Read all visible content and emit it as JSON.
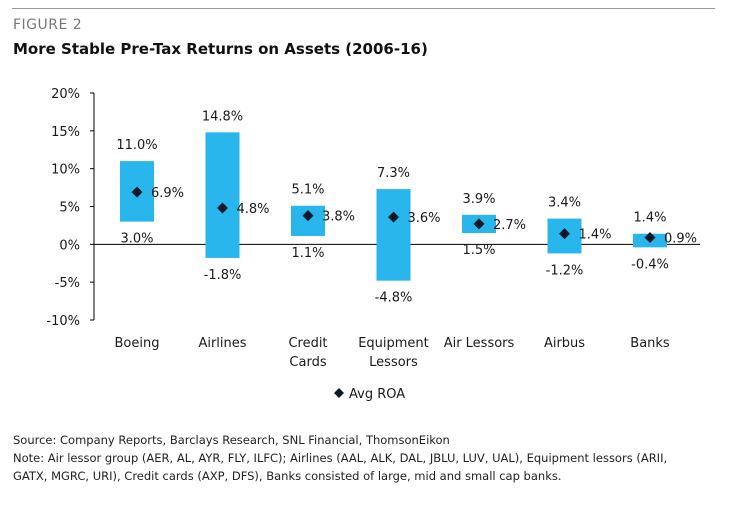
{
  "figure_label": "FIGURE 2",
  "title": "More Stable Pre-Tax Returns on Assets (2006-16)",
  "chart_data": {
    "type": "floating-bar-with-markers",
    "categories": [
      "Boeing",
      "Airlines",
      "Credit Cards",
      "Equipment Lessors",
      "Air Lessors",
      "Airbus",
      "Banks"
    ],
    "category_labels": [
      [
        "Boeing"
      ],
      [
        "Airlines"
      ],
      [
        "Credit",
        "Cards"
      ],
      [
        "Equipment",
        "Lessors"
      ],
      [
        "Air Lessors"
      ],
      [
        "Airbus"
      ],
      [
        "Banks"
      ]
    ],
    "high": [
      11.0,
      14.8,
      5.1,
      7.3,
      3.9,
      3.4,
      1.4
    ],
    "low": [
      3.0,
      -1.8,
      1.1,
      -4.8,
      1.5,
      -1.2,
      -0.4
    ],
    "avg": [
      6.9,
      4.8,
      3.8,
      3.6,
      2.7,
      1.4,
      0.9
    ],
    "high_labels": [
      "11.0%",
      "14.8%",
      "5.1%",
      "7.3%",
      "3.9%",
      "3.4%",
      "1.4%"
    ],
    "low_labels": [
      "3.0%",
      "-1.8%",
      "1.1%",
      "-4.8%",
      "1.5%",
      "-1.2%",
      "-0.4%"
    ],
    "avg_labels": [
      "6.9%",
      "4.8%",
      "3.8%",
      "3.6%",
      "2.7%",
      "1.4%",
      "0.9%"
    ],
    "ylim": [
      -10,
      20
    ],
    "yticks": [
      20,
      15,
      10,
      5,
      0,
      -5,
      -10
    ],
    "ytick_labels": [
      "20%",
      "15%",
      "10%",
      "5%",
      "0%",
      "-5%",
      "-10%"
    ],
    "legend": {
      "label": "Avg ROA",
      "position": "bottom-center"
    },
    "colors": {
      "bar": "#29b6ec",
      "marker": "#0a1a2a",
      "axis": "#000000"
    }
  },
  "notes": {
    "source": "Source: Company Reports, Barclays Research, SNL Financial, ThomsonEikon",
    "note_line1": "Note: Air lessor group (AER, AL, AYR, FLY, ILFC); Airlines (AAL, ALK, DAL, JBLU, LUV, UAL), Equipment lessors (ARII,",
    "note_line2": "GATX, MGRC, URI), Credit cards (AXP, DFS), Banks consisted of large, mid and small cap banks."
  }
}
